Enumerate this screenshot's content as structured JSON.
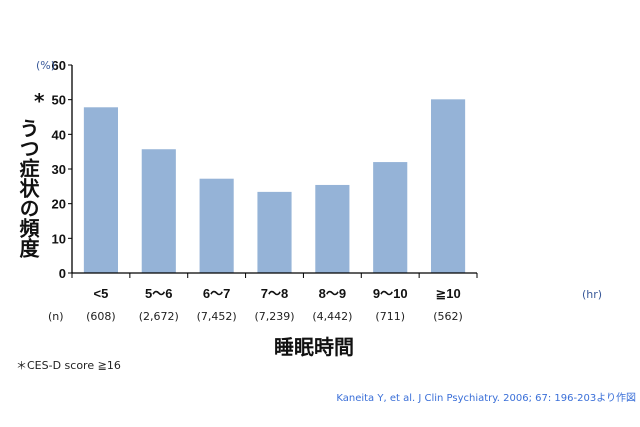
{
  "chart_data": {
    "type": "bar",
    "categories": [
      "<5",
      "5〜6",
      "6〜7",
      "7〜8",
      "8〜9",
      "9〜10",
      "≧10"
    ],
    "values": [
      47.8,
      35.7,
      27.2,
      23.4,
      25.4,
      32.0,
      50.1
    ],
    "n_label": "(n)",
    "n_values": [
      "(608)",
      "(2,672)",
      "(7,452)",
      "(7,239)",
      "(4,442)",
      "(711)",
      "(562)"
    ],
    "xlabel": "睡眠時間",
    "x_unit": "(hr)",
    "ylabel": "うつ症状の頻度",
    "ylabel_mark": "*",
    "y_unit": "(%)",
    "ylim": [
      0,
      60
    ],
    "yticks": [
      0,
      10,
      20,
      30,
      40,
      50,
      60
    ],
    "grid": false,
    "bar_color": "#95b3d7",
    "footnote": "＊CES-D score ≧16",
    "citation": "Kaneita Y, et al. J Clin Psychiatry. 2006; 67: 196-203より作図"
  }
}
